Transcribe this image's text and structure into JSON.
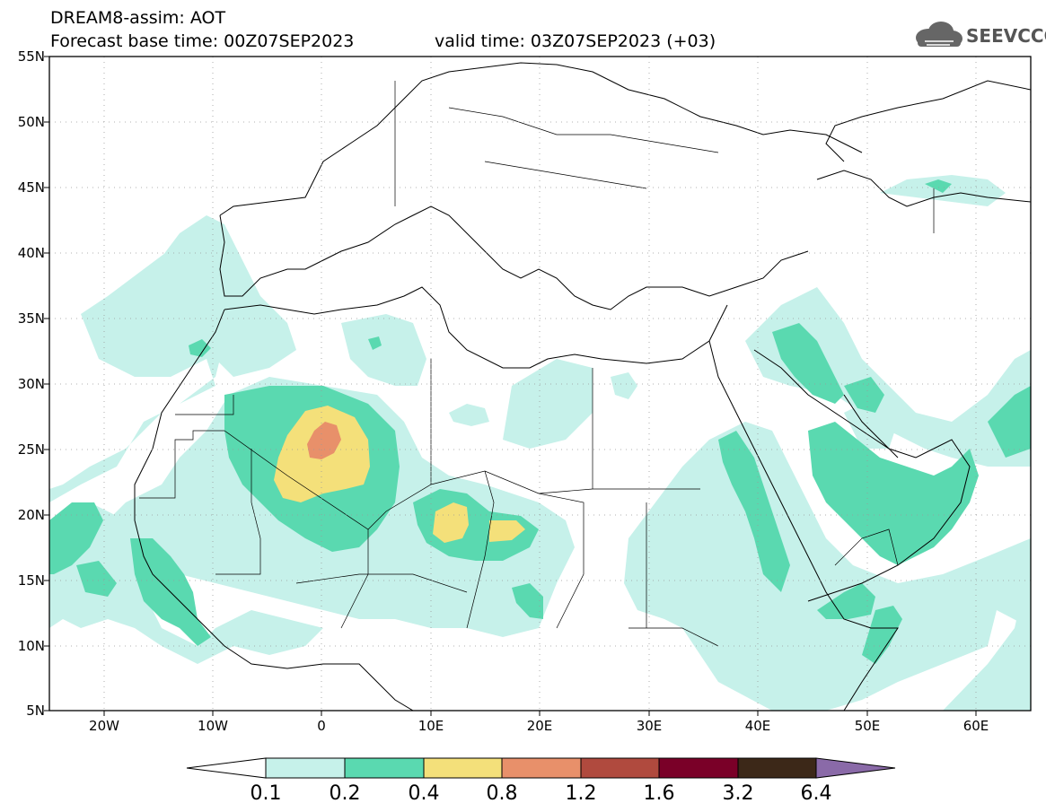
{
  "header": {
    "title_line1": "DREAM8-assim: AOT",
    "title_line2": "Forecast base time: 00Z07SEP2023",
    "valid_text": "valid time: 03Z07SEP2023 (+03)",
    "logo_text": "SEEVCCC",
    "logo_icon": "cloud-logo-icon"
  },
  "axes": {
    "lat_labels": [
      "55N",
      "50N",
      "45N",
      "40N",
      "35N",
      "30N",
      "25N",
      "20N",
      "15N",
      "10N",
      "5N"
    ],
    "lon_labels": [
      "20W",
      "10W",
      "0",
      "10E",
      "20E",
      "30E",
      "40E",
      "50E",
      "60E"
    ]
  },
  "colorbar": {
    "labels": [
      "0.1",
      "0.2",
      "0.4",
      "0.8",
      "1.2",
      "1.6",
      "3.2",
      "6.4"
    ],
    "colors": [
      "#ffffff",
      "#c6f1ea",
      "#5ad9b0",
      "#f4e07a",
      "#e8906a",
      "#b04a3e",
      "#7a0028",
      "#3c2818",
      "#8a6aa8"
    ]
  },
  "map_colors": {
    "level1": "#c6f1ea",
    "level2": "#5ad9b0",
    "level3": "#f4e07a",
    "level4": "#e8906a"
  }
}
